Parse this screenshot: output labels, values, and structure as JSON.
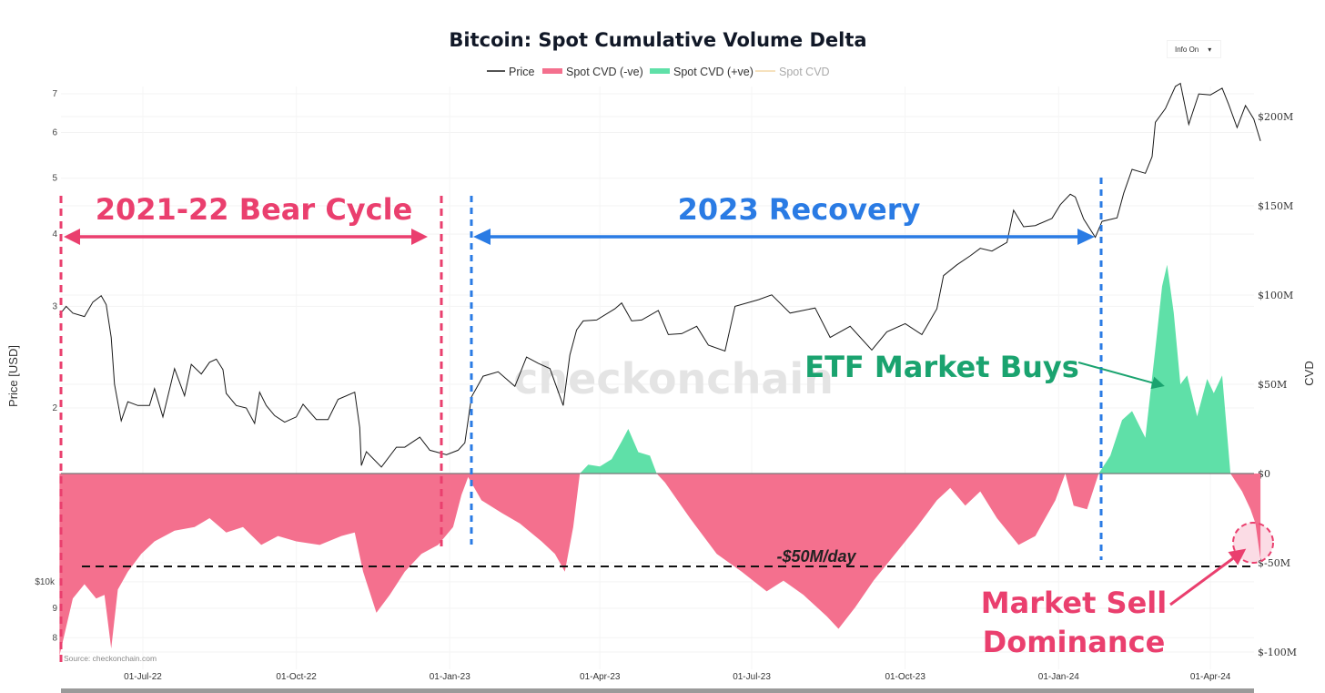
{
  "controls": {
    "info_label": "Info On",
    "info_icon": "caret-down-icon"
  },
  "colors": {
    "price": "#1a1a1a",
    "cvd_negative": "#f4708e",
    "cvd_positive": "#5fe0a8",
    "cvd_line": "#f3d9a9",
    "bear_annotation": "#ea3f6e",
    "recovery_annotation": "#2a7be4",
    "etf_annotation": "#1aa36f"
  },
  "chart_data": {
    "type": "line",
    "title": "Bitcoin: Spot Cumulative Volume Delta",
    "legend": [
      "Price",
      "Spot CVD (-ve)",
      "Spot CVD (+ve)",
      "Spot CVD"
    ],
    "legend_placement": "top-center",
    "source": "Source: checkonchain.com",
    "watermark": "checkonchain",
    "ylabel_left": "Price [USD]",
    "ylabel_right": "CVD",
    "y_left_scale": "log",
    "y_left_ticks": [
      "7",
      "6",
      "5",
      "4",
      "3",
      "2",
      "$10k",
      "9",
      "8"
    ],
    "y_left_tick_values": [
      70000,
      60000,
      50000,
      40000,
      30000,
      20000,
      10000,
      9000,
      8000
    ],
    "y_right_ticks": [
      "$200M",
      "$150M",
      "$100M",
      "$50M",
      "$0",
      "$-50M",
      "$-100M"
    ],
    "y_right_tick_values": [
      200,
      150,
      100,
      50,
      0,
      -50,
      -100
    ],
    "x_ticks": [
      "01-Jul-22",
      "01-Oct-22",
      "01-Jan-23",
      "01-Apr-23",
      "01-Jul-23",
      "01-Oct-23",
      "01-Jan-24",
      "01-Apr-24"
    ],
    "x_tick_dates": [
      "2022-07-01",
      "2022-10-01",
      "2023-01-01",
      "2023-04-01",
      "2023-07-01",
      "2023-10-01",
      "2024-01-01",
      "2024-04-01"
    ],
    "xlim": [
      "2022-05-12",
      "2024-05-01"
    ],
    "grid": true,
    "series": [
      {
        "name": "Price",
        "axis": "left",
        "points": [
          [
            "2022-05-12",
            29000
          ],
          [
            "2022-05-16",
            30000
          ],
          [
            "2022-05-20",
            29200
          ],
          [
            "2022-05-27",
            28800
          ],
          [
            "2022-06-01",
            30500
          ],
          [
            "2022-06-06",
            31300
          ],
          [
            "2022-06-09",
            30200
          ],
          [
            "2022-06-12",
            26500
          ],
          [
            "2022-06-14",
            22000
          ],
          [
            "2022-06-18",
            19000
          ],
          [
            "2022-06-22",
            20500
          ],
          [
            "2022-06-28",
            20200
          ],
          [
            "2022-07-05",
            20200
          ],
          [
            "2022-07-08",
            21600
          ],
          [
            "2022-07-13",
            19300
          ],
          [
            "2022-07-20",
            23400
          ],
          [
            "2022-07-26",
            21000
          ],
          [
            "2022-07-30",
            23800
          ],
          [
            "2022-08-05",
            22900
          ],
          [
            "2022-08-10",
            24000
          ],
          [
            "2022-08-14",
            24300
          ],
          [
            "2022-08-18",
            23300
          ],
          [
            "2022-08-20",
            21200
          ],
          [
            "2022-08-26",
            20200
          ],
          [
            "2022-09-01",
            20000
          ],
          [
            "2022-09-06",
            18800
          ],
          [
            "2022-09-09",
            21300
          ],
          [
            "2022-09-13",
            20200
          ],
          [
            "2022-09-18",
            19400
          ],
          [
            "2022-09-24",
            18900
          ],
          [
            "2022-10-01",
            19300
          ],
          [
            "2022-10-05",
            20300
          ],
          [
            "2022-10-13",
            19100
          ],
          [
            "2022-10-20",
            19100
          ],
          [
            "2022-10-26",
            20700
          ],
          [
            "2022-11-05",
            21300
          ],
          [
            "2022-11-08",
            18500
          ],
          [
            "2022-11-09",
            15900
          ],
          [
            "2022-11-12",
            16800
          ],
          [
            "2022-11-21",
            15800
          ],
          [
            "2022-11-30",
            17100
          ],
          [
            "2022-12-05",
            17100
          ],
          [
            "2022-12-14",
            17800
          ],
          [
            "2022-12-20",
            16900
          ],
          [
            "2022-12-30",
            16600
          ],
          [
            "2023-01-06",
            16900
          ],
          [
            "2023-01-10",
            17400
          ],
          [
            "2023-01-14",
            20900
          ],
          [
            "2023-01-21",
            22700
          ],
          [
            "2023-01-30",
            23100
          ],
          [
            "2023-02-09",
            21800
          ],
          [
            "2023-02-16",
            24500
          ],
          [
            "2023-02-23",
            23900
          ],
          [
            "2023-03-02",
            23400
          ],
          [
            "2023-03-10",
            20200
          ],
          [
            "2023-03-14",
            24700
          ],
          [
            "2023-03-18",
            27300
          ],
          [
            "2023-03-22",
            28300
          ],
          [
            "2023-03-30",
            28400
          ],
          [
            "2023-04-10",
            29700
          ],
          [
            "2023-04-14",
            30400
          ],
          [
            "2023-04-20",
            28300
          ],
          [
            "2023-04-26",
            28400
          ],
          [
            "2023-05-06",
            29500
          ],
          [
            "2023-05-12",
            26800
          ],
          [
            "2023-05-20",
            26900
          ],
          [
            "2023-05-29",
            27700
          ],
          [
            "2023-06-05",
            25700
          ],
          [
            "2023-06-15",
            25100
          ],
          [
            "2023-06-21",
            30000
          ],
          [
            "2023-07-05",
            30800
          ],
          [
            "2023-07-13",
            31400
          ],
          [
            "2023-07-24",
            29200
          ],
          [
            "2023-08-08",
            29800
          ],
          [
            "2023-08-17",
            26500
          ],
          [
            "2023-08-29",
            27700
          ],
          [
            "2023-09-11",
            25200
          ],
          [
            "2023-09-20",
            27100
          ],
          [
            "2023-10-01",
            28000
          ],
          [
            "2023-10-11",
            26800
          ],
          [
            "2023-10-20",
            29700
          ],
          [
            "2023-10-24",
            33900
          ],
          [
            "2023-11-01",
            35400
          ],
          [
            "2023-11-09",
            36700
          ],
          [
            "2023-11-15",
            37800
          ],
          [
            "2023-11-22",
            37400
          ],
          [
            "2023-12-01",
            38700
          ],
          [
            "2023-12-05",
            44000
          ],
          [
            "2023-12-11",
            41200
          ],
          [
            "2023-12-18",
            41400
          ],
          [
            "2023-12-28",
            42600
          ],
          [
            "2024-01-02",
            45000
          ],
          [
            "2024-01-08",
            46900
          ],
          [
            "2024-01-11",
            46400
          ],
          [
            "2024-01-16",
            42500
          ],
          [
            "2024-01-23",
            39500
          ],
          [
            "2024-01-27",
            42100
          ],
          [
            "2024-02-05",
            42700
          ],
          [
            "2024-02-09",
            47100
          ],
          [
            "2024-02-14",
            51800
          ],
          [
            "2024-02-22",
            51000
          ],
          [
            "2024-02-26",
            54500
          ],
          [
            "2024-02-28",
            62500
          ],
          [
            "2024-03-05",
            66000
          ],
          [
            "2024-03-11",
            72100
          ],
          [
            "2024-03-14",
            73000
          ],
          [
            "2024-03-19",
            62000
          ],
          [
            "2024-03-25",
            70000
          ],
          [
            "2024-04-01",
            69700
          ],
          [
            "2024-04-08",
            71600
          ],
          [
            "2024-04-12",
            67000
          ],
          [
            "2024-04-17",
            61200
          ],
          [
            "2024-04-22",
            66800
          ],
          [
            "2024-04-27",
            63300
          ],
          [
            "2024-05-01",
            58000
          ]
        ]
      },
      {
        "name": "Spot CVD",
        "axis": "right",
        "unit": "$M",
        "points": [
          [
            "2022-05-12",
            -102
          ],
          [
            "2022-05-20",
            -70
          ],
          [
            "2022-05-27",
            -62
          ],
          [
            "2022-06-03",
            -70
          ],
          [
            "2022-06-08",
            -68
          ],
          [
            "2022-06-12",
            -98
          ],
          [
            "2022-06-16",
            -65
          ],
          [
            "2022-06-22",
            -55
          ],
          [
            "2022-06-30",
            -45
          ],
          [
            "2022-07-08",
            -38
          ],
          [
            "2022-07-20",
            -32
          ],
          [
            "2022-08-01",
            -30
          ],
          [
            "2022-08-10",
            -25
          ],
          [
            "2022-08-20",
            -33
          ],
          [
            "2022-08-30",
            -30
          ],
          [
            "2022-09-10",
            -40
          ],
          [
            "2022-09-20",
            -35
          ],
          [
            "2022-10-01",
            -38
          ],
          [
            "2022-10-15",
            -40
          ],
          [
            "2022-10-28",
            -35
          ],
          [
            "2022-11-05",
            -33
          ],
          [
            "2022-11-10",
            -55
          ],
          [
            "2022-11-18",
            -78
          ],
          [
            "2022-11-26",
            -68
          ],
          [
            "2022-12-05",
            -55
          ],
          [
            "2022-12-15",
            -45
          ],
          [
            "2022-12-25",
            -40
          ],
          [
            "2023-01-03",
            -30
          ],
          [
            "2023-01-08",
            -12
          ],
          [
            "2023-01-12",
            -2
          ],
          [
            "2023-01-20",
            -15
          ],
          [
            "2023-02-01",
            -22
          ],
          [
            "2023-02-12",
            -28
          ],
          [
            "2023-02-25",
            -38
          ],
          [
            "2023-03-05",
            -45
          ],
          [
            "2023-03-11",
            -55
          ],
          [
            "2023-03-16",
            -30
          ],
          [
            "2023-03-20",
            0
          ],
          [
            "2023-03-25",
            5
          ],
          [
            "2023-04-01",
            4
          ],
          [
            "2023-04-08",
            8
          ],
          [
            "2023-04-14",
            18
          ],
          [
            "2023-04-18",
            25
          ],
          [
            "2023-04-24",
            12
          ],
          [
            "2023-05-01",
            10
          ],
          [
            "2023-05-05",
            0
          ],
          [
            "2023-05-10",
            -5
          ],
          [
            "2023-05-25",
            -25
          ],
          [
            "2023-06-10",
            -45
          ],
          [
            "2023-06-25",
            -55
          ],
          [
            "2023-07-10",
            -66
          ],
          [
            "2023-07-20",
            -60
          ],
          [
            "2023-08-01",
            -68
          ],
          [
            "2023-08-15",
            -80
          ],
          [
            "2023-08-22",
            -87
          ],
          [
            "2023-09-01",
            -75
          ],
          [
            "2023-09-12",
            -60
          ],
          [
            "2023-09-25",
            -45
          ],
          [
            "2023-10-08",
            -30
          ],
          [
            "2023-10-20",
            -15
          ],
          [
            "2023-10-28",
            -8
          ],
          [
            "2023-11-06",
            -18
          ],
          [
            "2023-11-15",
            -10
          ],
          [
            "2023-11-25",
            -25
          ],
          [
            "2023-12-08",
            -40
          ],
          [
            "2023-12-18",
            -35
          ],
          [
            "2023-12-30",
            -15
          ],
          [
            "2024-01-05",
            0
          ],
          [
            "2024-01-10",
            -18
          ],
          [
            "2024-01-18",
            -20
          ],
          [
            "2024-01-25",
            0
          ],
          [
            "2024-02-01",
            10
          ],
          [
            "2024-02-08",
            30
          ],
          [
            "2024-02-14",
            35
          ],
          [
            "2024-02-22",
            20
          ],
          [
            "2024-02-28",
            70
          ],
          [
            "2024-03-03",
            105
          ],
          [
            "2024-03-06",
            117
          ],
          [
            "2024-03-10",
            90
          ],
          [
            "2024-03-14",
            50
          ],
          [
            "2024-03-18",
            55
          ],
          [
            "2024-03-24",
            32
          ],
          [
            "2024-03-30",
            53
          ],
          [
            "2024-04-03",
            45
          ],
          [
            "2024-04-08",
            55
          ],
          [
            "2024-04-13",
            0
          ],
          [
            "2024-04-20",
            -10
          ],
          [
            "2024-04-25",
            -20
          ],
          [
            "2024-04-28",
            -28
          ],
          [
            "2024-05-01",
            -48
          ]
        ]
      }
    ],
    "annotations": {
      "bear": {
        "label": "2021-22 Bear Cycle",
        "start": "2022-05-12",
        "end": "2022-12-28"
      },
      "recovery": {
        "label": "2023 Recovery",
        "start": "2023-01-15",
        "end": "2024-01-25"
      },
      "etf": {
        "label": "ETF Market Buys"
      },
      "sell": {
        "label_line1": "Market Sell",
        "label_line2": "Dominance"
      },
      "threshold": {
        "label": "-$50M/day",
        "value": -50
      }
    }
  }
}
